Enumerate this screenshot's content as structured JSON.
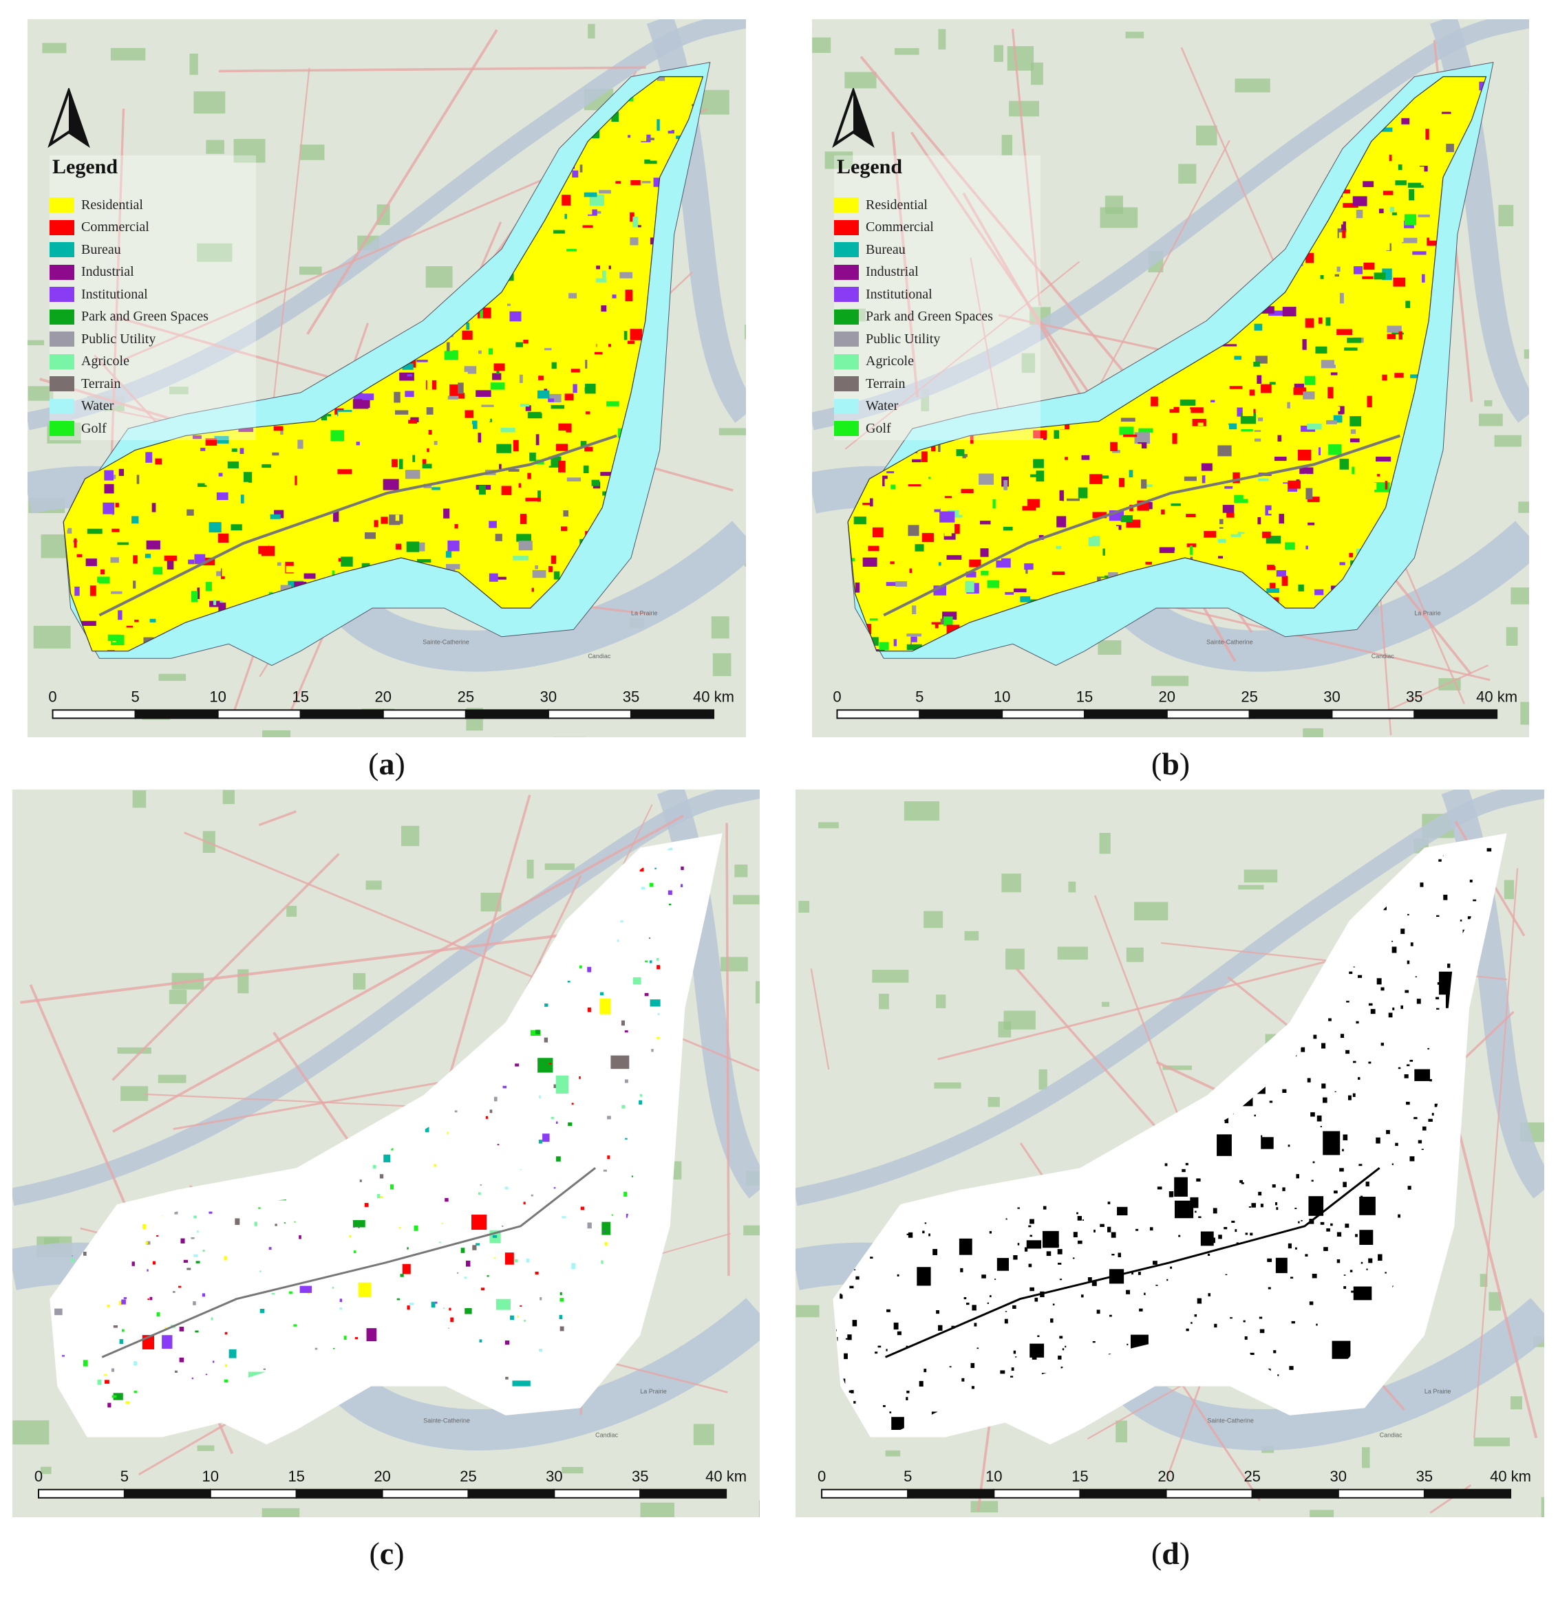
{
  "panels": [
    {
      "id": "a",
      "caption": "a",
      "style": "landuse"
    },
    {
      "id": "b",
      "caption": "b",
      "style": "landuse"
    },
    {
      "id": "c",
      "caption": "c",
      "style": "difference-color"
    },
    {
      "id": "d",
      "caption": "d",
      "style": "difference-binary"
    }
  ],
  "legend": {
    "title": "Legend",
    "items": [
      {
        "label": "Residential",
        "color": "#ffff00"
      },
      {
        "label": "Commercial",
        "color": "#ff0000"
      },
      {
        "label": "Bureau",
        "color": "#00b4a8"
      },
      {
        "label": "Industrial",
        "color": "#8e0a8c"
      },
      {
        "label": "Institutional",
        "color": "#8a3cf5"
      },
      {
        "label": "Park and Green Spaces",
        "color": "#0aa51a"
      },
      {
        "label": "Public Utility",
        "color": "#9c9aa6"
      },
      {
        "label": "Agricole",
        "color": "#7af5a5"
      },
      {
        "label": "Terrain",
        "color": "#7a6e6e"
      },
      {
        "label": "Water",
        "color": "#a8f5f8"
      },
      {
        "label": "Golf",
        "color": "#19f019"
      }
    ]
  },
  "scalebar": {
    "ticks": [
      "0",
      "5",
      "10",
      "15",
      "20",
      "25",
      "30",
      "35",
      "40 km"
    ]
  },
  "basemap_places": [
    "Sainte-Catherine",
    "La Prairie",
    "Candiac"
  ],
  "colors": {
    "basemap": "#dfe6d9",
    "water": "#a8f5f8",
    "river": "#b9c6d6",
    "roads": "#e7a7a7",
    "forest": "#9cc58d"
  }
}
